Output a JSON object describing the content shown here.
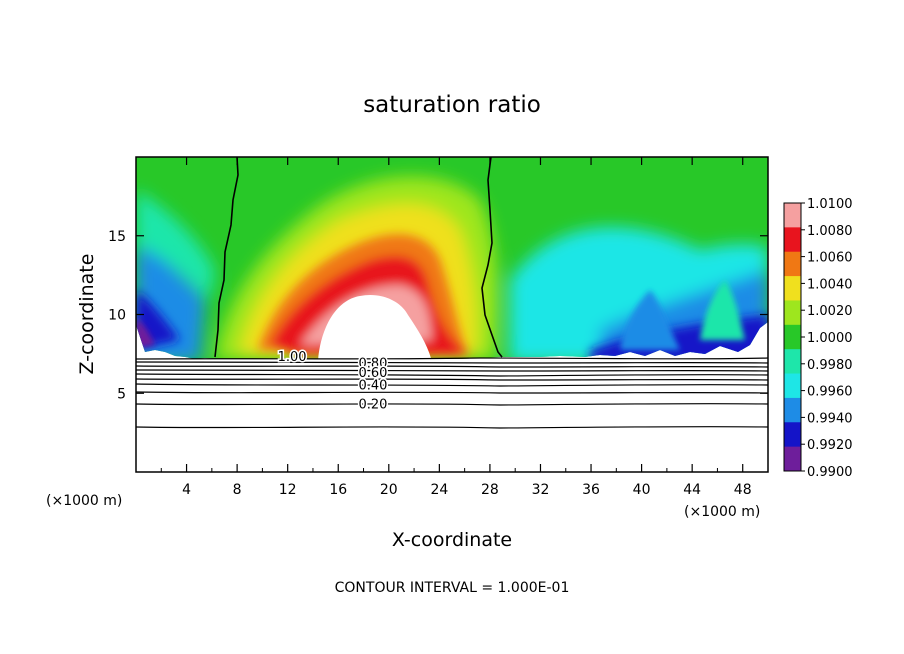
{
  "chart_data": {
    "type": "contour",
    "title": "saturation ratio",
    "xlabel": "X-coordinate",
    "ylabel": "Z-coordinate",
    "x_unit_left": "(×1000 m)",
    "x_unit_right": "(×1000 m)",
    "xlim": [
      0,
      50
    ],
    "ylim": [
      0,
      20
    ],
    "x_ticks": [
      4,
      8,
      12,
      16,
      20,
      24,
      28,
      32,
      36,
      40,
      44,
      48
    ],
    "y_ticks": [
      5,
      10,
      15
    ],
    "colorbar": {
      "levels": [
        "1.0100",
        "1.0080",
        "1.0060",
        "1.0040",
        "1.0020",
        "1.0000",
        "0.9980",
        "0.9960",
        "0.9940",
        "0.9920",
        "0.9900"
      ],
      "colors": [
        "#f5a0a0",
        "#e8141e",
        "#f07814",
        "#f0e01e",
        "#9ee61e",
        "#28c828",
        "#1ee6aa",
        "#1ee6e6",
        "#1e8ce6",
        "#1414c8",
        "#6e1e9b"
      ]
    },
    "line_contours": [
      {
        "label": "1.00",
        "label_x": 11.2,
        "y": 7.3
      },
      {
        "label": "0.80",
        "label_x": 17.6,
        "y": 6.9
      },
      {
        "label": "0.60",
        "label_x": 17.6,
        "y": 6.3
      },
      {
        "label": "0.40",
        "label_x": 17.6,
        "y": 5.5
      },
      {
        "label": "0.20",
        "label_x": 17.6,
        "y": 4.3
      }
    ],
    "footer": "CONTOUR INTERVAL = 1.000E-01"
  },
  "colors": {
    "frame": "#000000",
    "background": "#ffffff",
    "green": "#28c828",
    "light_green": "#9ee61e",
    "yellow": "#f0e01e",
    "orange": "#f07814",
    "red": "#e8141e",
    "pink": "#f5a0a0",
    "cyan": "#1ee6e6",
    "aqua": "#1ee6aa",
    "blue": "#1e8ce6",
    "dark_blue": "#1414c8",
    "purple": "#6e1e9b"
  }
}
